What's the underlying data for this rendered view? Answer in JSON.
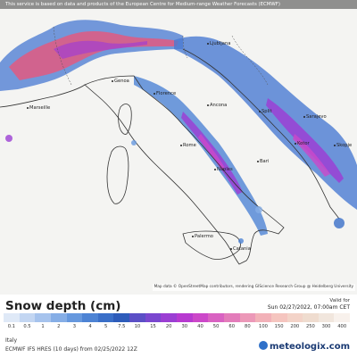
{
  "banner": "This service is based on data and products of the European Centre for Medium-range Weather Forecasts (ECMWF)",
  "attribution": "Map data © OpenStreetMap contributors, rendering GIScience Research Group @ Heidelberg University",
  "cities": [
    {
      "name": "Ljubljana"
    },
    {
      "name": "Genoa"
    },
    {
      "name": "Florence"
    },
    {
      "name": "Marseille"
    },
    {
      "name": "Split"
    },
    {
      "name": "Sarajevo"
    },
    {
      "name": "Kotor"
    },
    {
      "name": "Ancona"
    },
    {
      "name": "Rome"
    },
    {
      "name": "Naples"
    },
    {
      "name": "Bari"
    },
    {
      "name": "Palermo"
    },
    {
      "name": "Catania"
    },
    {
      "name": "Skopje"
    }
  ],
  "legend": {
    "title": "Snow depth (cm)",
    "valid_label": "Valid for",
    "valid_value": "Sun 02/27/2022, 07:00am CET",
    "ticks": [
      "0.1",
      "0.5",
      "1",
      "2",
      "3",
      "4",
      "5",
      "7.5",
      "10",
      "15",
      "20",
      "30",
      "40",
      "50",
      "60",
      "80",
      "100",
      "150",
      "200",
      "250",
      "300",
      "400"
    ],
    "colors": [
      "#dfe9f7",
      "#c3d6f2",
      "#a6c3ed",
      "#86aee6",
      "#6698de",
      "#4d83d4",
      "#3a6fc8",
      "#2e5cba",
      "#5b4fc6",
      "#7a47cf",
      "#9b3fd3",
      "#b73ad0",
      "#cc48c9",
      "#d962c2",
      "#e37cba",
      "#ec98b8",
      "#f2b1b8",
      "#f5c5bf",
      "#f3d3c8",
      "#efdccf",
      "#f1e6dd",
      "#f8f1ec"
    ],
    "region": "Italy",
    "model": "ECMWF IFS HRES (10 days) from 02/25/2022 12Z",
    "brand": "meteologix.com"
  }
}
